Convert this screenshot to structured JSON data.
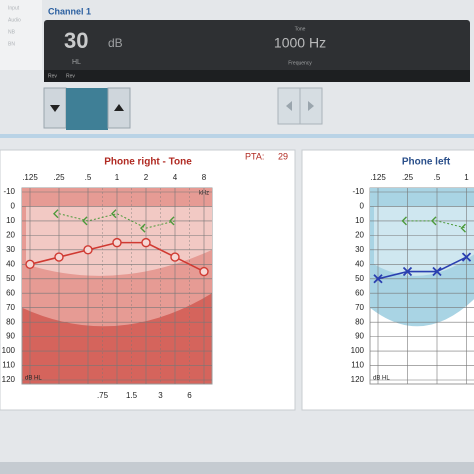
{
  "sidebar": [
    "Input",
    "Audio",
    "NB",
    "BN"
  ],
  "channel": {
    "title": "Channel 1",
    "level": "30",
    "level_unit": "dB",
    "level_scale": "HL",
    "stimulus": "Tone",
    "frequency": "1000 Hz",
    "frequency_label": "Frequency",
    "tabs": [
      "Rev",
      "Rev"
    ]
  },
  "audiograms": [
    {
      "title": "Phone right - Tone",
      "pta_label": "PTA:",
      "pta": 29,
      "categories": [
        ".125",
        ".25",
        ".5",
        "1",
        "2",
        "4",
        "8"
      ],
      "x_unit": "kHz",
      "y_unit": "dB HL",
      "ylim": [
        -10,
        120
      ],
      "yticks": [
        -10,
        0,
        10,
        20,
        30,
        40,
        50,
        60,
        70,
        80,
        90,
        100,
        110,
        120
      ],
      "mid_labels": [
        ".75",
        "1.5",
        "3",
        "6"
      ],
      "air": {
        "color": "#d03a32",
        "values": [
          40,
          35,
          30,
          25,
          25,
          35,
          45
        ]
      },
      "bone": {
        "color": "#4c9a3a",
        "values": [
          null,
          5,
          10,
          5,
          15,
          10,
          null
        ]
      }
    },
    {
      "title": "Phone left",
      "categories": [
        ".125",
        ".25",
        ".5",
        "1"
      ],
      "y_unit": "dB HL",
      "ylim": [
        -10,
        120
      ],
      "yticks": [
        -10,
        0,
        10,
        20,
        30,
        40,
        50,
        60,
        70,
        80,
        90,
        100,
        110,
        120
      ],
      "air": {
        "color": "#2a3fb0",
        "values": [
          50,
          45,
          45,
          35
        ]
      },
      "bone": {
        "color": "#4c9a3a",
        "values": [
          null,
          10,
          10,
          15
        ]
      }
    }
  ]
}
